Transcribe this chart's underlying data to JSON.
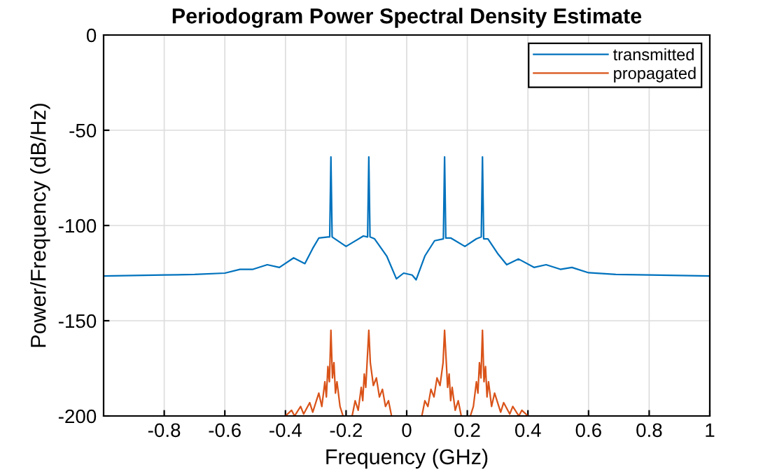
{
  "chart_data": {
    "type": "line",
    "title": "Periodogram Power Spectral Density Estimate",
    "xlabel": "Frequency (GHz)",
    "ylabel": "Power/Frequency (dB/Hz)",
    "xlim": [
      -1,
      1
    ],
    "xticks": [
      -0.8,
      -0.6,
      -0.4,
      -0.2,
      0,
      0.2,
      0.4,
      0.6,
      0.8,
      1
    ],
    "ylim": [
      -200,
      0
    ],
    "yticks": [
      -200,
      -150,
      -100,
      -50,
      0
    ],
    "grid": true,
    "legend": "top right",
    "marker": "none",
    "line_style": "solid",
    "series": [
      {
        "name": "transmitted",
        "color": "#0072bd",
        "x": [
          -1,
          -0.8,
          -0.7,
          -0.6,
          -0.55,
          -0.507,
          -0.46,
          -0.42,
          -0.373,
          -0.336,
          -0.31,
          -0.29,
          -0.26,
          -0.254,
          -0.25,
          -0.246,
          -0.2,
          -0.143,
          -0.129,
          -0.125,
          -0.121,
          -0.106,
          -0.066,
          -0.034,
          -0.01,
          0.018,
          0.031,
          0.06,
          0.092,
          0.121,
          0.125,
          0.129,
          0.146,
          0.192,
          0.23,
          0.246,
          0.25,
          0.254,
          0.268,
          0.3,
          0.33,
          0.369,
          0.42,
          0.46,
          0.507,
          0.545,
          0.6,
          0.69,
          0.8,
          1.0
        ],
        "values": [
          -126.5,
          -126,
          -125.7,
          -125,
          -123,
          -123,
          -120.6,
          -122,
          -117,
          -120,
          -112,
          -106.6,
          -106,
          -106,
          -64,
          -106,
          -111,
          -105.5,
          -106,
          -64,
          -106,
          -107,
          -116,
          -128,
          -125,
          -126,
          -128.5,
          -116,
          -108,
          -107,
          -64,
          -106.6,
          -106.6,
          -111,
          -107,
          -106,
          -64,
          -107,
          -107,
          -114.7,
          -120.6,
          -117.6,
          -122,
          -120.6,
          -123,
          -122,
          -124.8,
          -125.7,
          -126,
          -126.5
        ]
      },
      {
        "name": "propagated",
        "color": "#d95319",
        "x": [
          -0.4,
          -0.38,
          -0.37,
          -0.35,
          -0.34,
          -0.32,
          -0.31,
          -0.29,
          -0.28,
          -0.27,
          -0.265,
          -0.26,
          -0.255,
          -0.25,
          -0.245,
          -0.24,
          -0.235,
          -0.23,
          -0.22,
          -0.21,
          -0.18,
          -0.17,
          -0.16,
          -0.15,
          -0.145,
          -0.14,
          -0.135,
          -0.13,
          -0.125,
          -0.12,
          -0.115,
          -0.11,
          -0.1,
          -0.09,
          -0.08,
          -0.07,
          -0.06,
          -0.05,
          0,
          0.05,
          0.06,
          0.07,
          0.08,
          0.09,
          0.1,
          0.11,
          0.115,
          0.12,
          0.125,
          0.13,
          0.135,
          0.14,
          0.145,
          0.15,
          0.16,
          0.17,
          0.18,
          0.21,
          0.22,
          0.23,
          0.235,
          0.24,
          0.245,
          0.25,
          0.255,
          0.26,
          0.265,
          0.27,
          0.28,
          0.29,
          0.31,
          0.32,
          0.34,
          0.35,
          0.37,
          0.38,
          0.4
        ],
        "values": [
          -200,
          -197,
          -200,
          -195,
          -199,
          -193,
          -198,
          -188,
          -195,
          -182,
          -190,
          -174,
          -182,
          -155,
          -180,
          -172,
          -188,
          -182,
          -195,
          -200,
          -200,
          -192,
          -197,
          -185,
          -192,
          -178,
          -185,
          -170,
          -155,
          -172,
          -178,
          -184,
          -180,
          -190,
          -186,
          -195,
          -192,
          -200,
          null,
          -200,
          -192,
          -195,
          -186,
          -190,
          -180,
          -184,
          -178,
          -172,
          -155,
          -170,
          -185,
          -178,
          -192,
          -185,
          -197,
          -192,
          -200,
          -200,
          -195,
          -182,
          -188,
          -172,
          -180,
          -155,
          -182,
          -174,
          -190,
          -182,
          -195,
          -188,
          -198,
          -193,
          -199,
          -195,
          -200,
          -197,
          -200
        ]
      }
    ]
  }
}
